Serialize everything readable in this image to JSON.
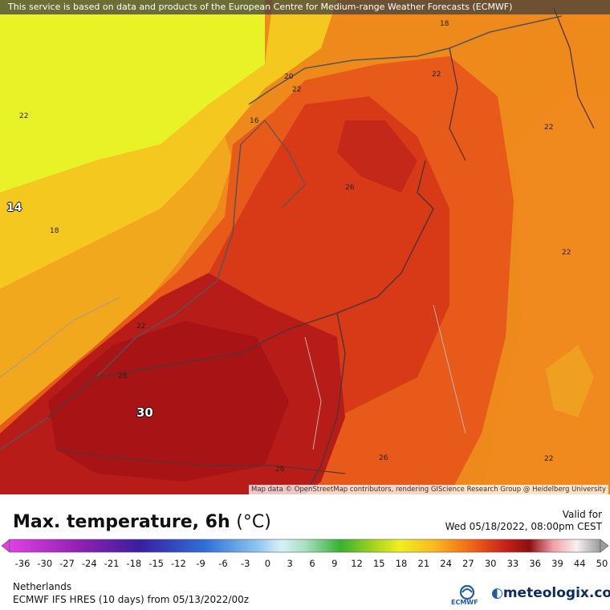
{
  "banner": "This service is based on data and products of the European Centre for Medium-range Weather Forecasts (ECMWF)",
  "attribution": "Map data © OpenStreetMap contributors, rendering GIScience Research Group @ Heidelberg University",
  "contour_labels": [
    "18",
    "20",
    "22",
    "22",
    "22",
    "22",
    "22",
    "22",
    "16",
    "26",
    "14",
    "18",
    "22",
    "28",
    "30",
    "28",
    "26",
    "22"
  ],
  "title": "Max. temperature, 6h",
  "unit": "(°C)",
  "valid_label": "Valid for",
  "valid_time": "Wed 05/18/2022, 08:00pm CEST",
  "scale_ticks": [
    "-36",
    "-30",
    "-27",
    "-24",
    "-21",
    "-18",
    "-15",
    "-12",
    "-9",
    "-6",
    "-3",
    "0",
    "3",
    "6",
    "9",
    "12",
    "15",
    "18",
    "21",
    "24",
    "27",
    "30",
    "33",
    "36",
    "39",
    "44",
    "50"
  ],
  "region": "Netherlands",
  "model_run": "ECMWF IFS HRES (10 days) from 05/13/2022/00z",
  "brand": "meteologix.com",
  "ecmwf_logo_text": "ECMWF",
  "colors": {
    "hot": "#b01818",
    "warm": "#e04018",
    "mild": "#f07818",
    "cool": "#f8c020",
    "cold": "#e8f020"
  },
  "icons": [
    "arrow-left-icon",
    "arrow-right-icon",
    "ecmwf-logo-icon",
    "meteologix-logo-icon"
  ]
}
